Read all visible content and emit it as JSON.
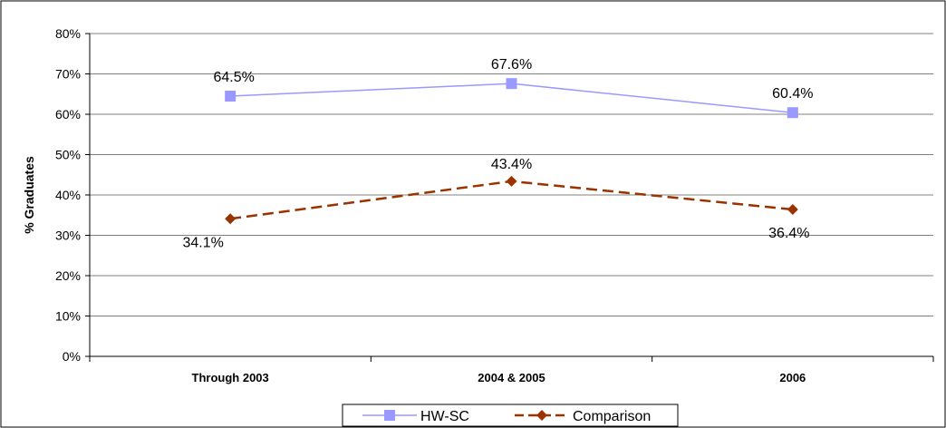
{
  "chart_data": {
    "type": "line",
    "title": "",
    "xlabel": "",
    "ylabel": "% Graduates",
    "categories": [
      "Through 2003",
      "2004 & 2005",
      "2006"
    ],
    "ylim": [
      0,
      80
    ],
    "yticks": [
      "0%",
      "10%",
      "20%",
      "30%",
      "40%",
      "50%",
      "60%",
      "70%",
      "80%"
    ],
    "grid": true,
    "legend_position": "bottom",
    "series": [
      {
        "name": "HW-SC",
        "values": [
          64.5,
          67.6,
          60.4
        ],
        "labels": [
          "64.5%",
          "67.6%",
          "60.4%"
        ],
        "color": "#9999ff",
        "line_style": "solid",
        "marker": "square"
      },
      {
        "name": "Comparison",
        "values": [
          34.1,
          43.4,
          36.4
        ],
        "labels": [
          "34.1%",
          "43.4%",
          "36.4%"
        ],
        "color": "#993300",
        "line_style": "dashed",
        "marker": "diamond"
      }
    ]
  }
}
